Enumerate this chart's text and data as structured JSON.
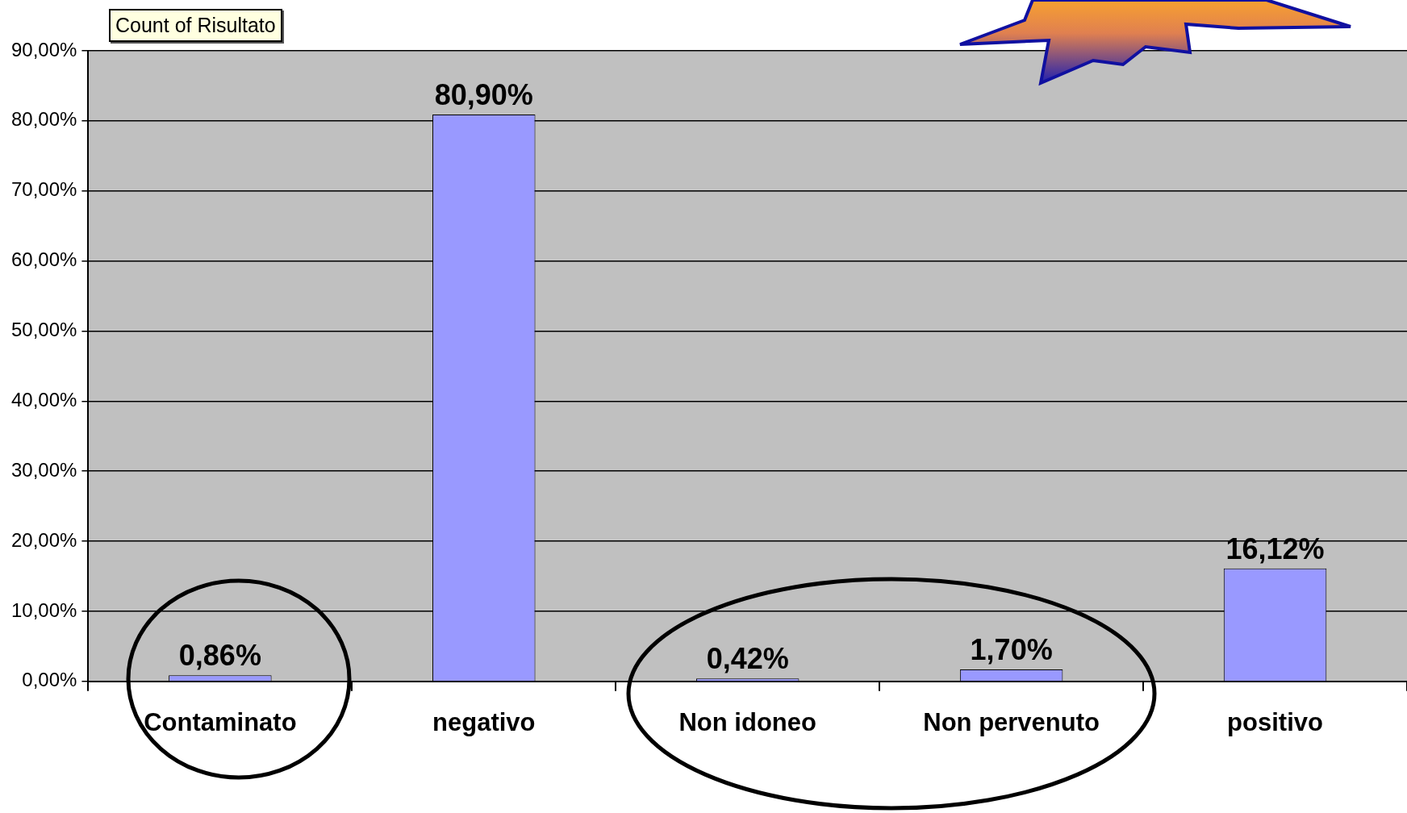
{
  "chart_data": {
    "type": "bar",
    "title": "Count of Risultato",
    "categories": [
      "Contaminato",
      "negativo",
      "Non idoneo",
      "Non pervenuto",
      "positivo"
    ],
    "values": [
      0.86,
      80.9,
      0.42,
      1.7,
      16.12
    ],
    "value_labels": [
      "0,86%",
      "80,90%",
      "0,42%",
      "1,70%",
      "16,12%"
    ],
    "color": "#9999ff",
    "ylim": [
      0,
      90
    ],
    "yticks": [
      {
        "value": 0,
        "label": "0,00%"
      },
      {
        "value": 10,
        "label": "10,00%"
      },
      {
        "value": 20,
        "label": "20,00%"
      },
      {
        "value": 30,
        "label": "30,00%"
      },
      {
        "value": 40,
        "label": "40,00%"
      },
      {
        "value": 50,
        "label": "50,00%"
      },
      {
        "value": 60,
        "label": "60,00%"
      },
      {
        "value": 70,
        "label": "70,00%"
      },
      {
        "value": 80,
        "label": "80,00%"
      },
      {
        "value": 90,
        "label": "90,00%"
      }
    ],
    "grid": "y",
    "legend": false
  }
}
